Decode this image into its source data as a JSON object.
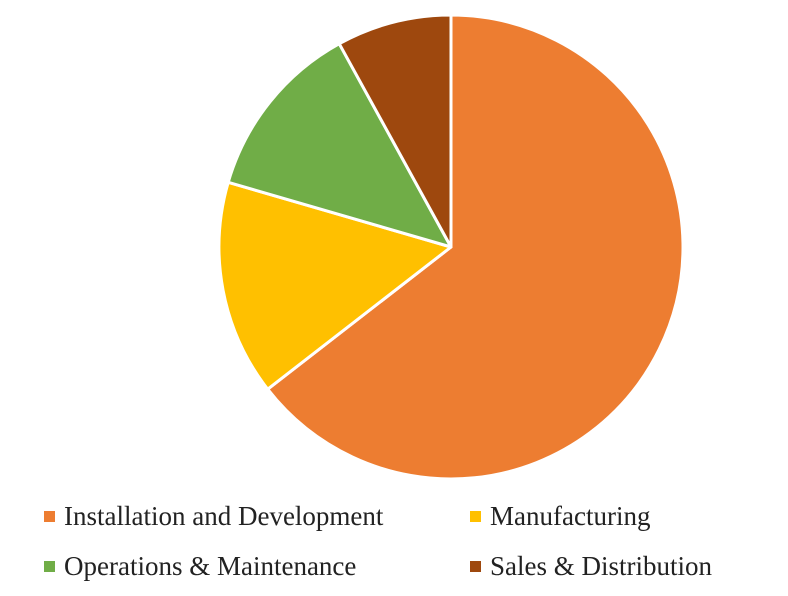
{
  "chart_data": {
    "type": "pie",
    "title": "",
    "categories": [
      "Installation and Development",
      "Manufacturing",
      "Operations & Maintenance",
      "Sales & Distribution"
    ],
    "values": [
      64.5,
      15.0,
      12.5,
      8.0
    ],
    "colors": [
      "#ED7D31",
      "#FFC000",
      "#70AD47",
      "#9E480E"
    ],
    "start_angle_deg": 0,
    "direction": "clockwise",
    "slice_border_color": "#ffffff",
    "legend_position": "bottom"
  },
  "legend": {
    "items": [
      {
        "label": "Installation and Development",
        "color": "#ED7D31"
      },
      {
        "label": "Manufacturing",
        "color": "#FFC000"
      },
      {
        "label": "Operations & Maintenance",
        "color": "#70AD47"
      },
      {
        "label": "Sales & Distribution",
        "color": "#9E480E"
      }
    ]
  }
}
